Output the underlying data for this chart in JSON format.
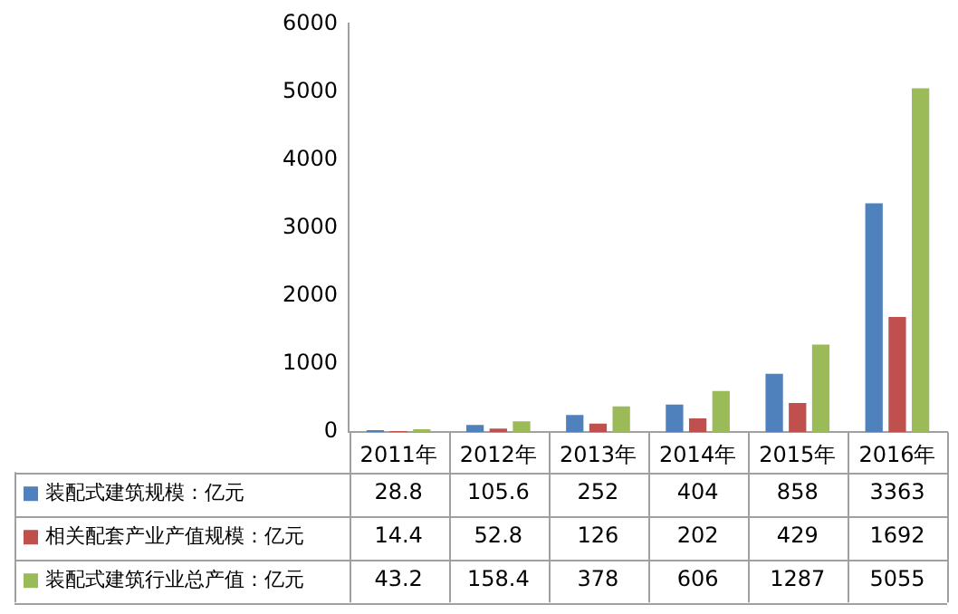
{
  "chart_data": {
    "type": "bar",
    "categories": [
      "2011年",
      "2012年",
      "2013年",
      "2014年",
      "2015年",
      "2016年"
    ],
    "series": [
      {
        "name": "装配式建筑规模：亿元",
        "color": "#4f81bd",
        "values": [
          28.8,
          105.6,
          252,
          404,
          858,
          3363
        ]
      },
      {
        "name": "相关配套产业产值规模：亿元",
        "color": "#c0504d",
        "values": [
          14.4,
          52.8,
          126,
          202,
          429,
          1692
        ]
      },
      {
        "name": "装配式建筑行业总产值：亿元",
        "color": "#9bbb59",
        "values": [
          43.2,
          158.4,
          378,
          606,
          1287,
          5055
        ]
      }
    ],
    "ylim": [
      0,
      6000
    ],
    "yticks": [
      0,
      1000,
      2000,
      3000,
      4000,
      5000,
      6000
    ],
    "grid": false,
    "legend": "bottom left",
    "data_labels": true
  }
}
